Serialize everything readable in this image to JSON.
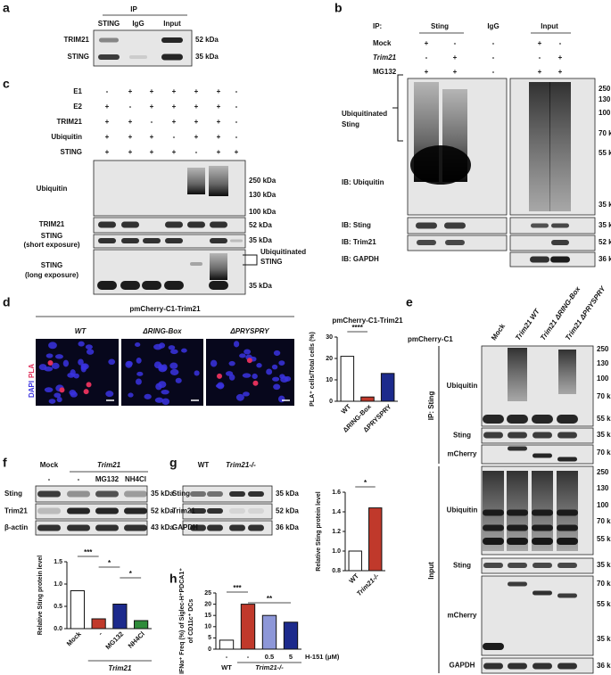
{
  "panels": {
    "a": {
      "letter": "a",
      "ip": "IP",
      "lanes": [
        "STING",
        "IgG",
        "Input"
      ],
      "rows": [
        "TRIM21",
        "STING"
      ],
      "markers": [
        "52 kDa",
        "35 kDa"
      ]
    },
    "b": {
      "letter": "b",
      "ip": "IP:",
      "groups": [
        "Sting",
        "IgG",
        "Input"
      ],
      "conditions": [
        {
          "name": "Mock",
          "signs": [
            "+",
            "-",
            "-",
            "+",
            "-"
          ]
        },
        {
          "name": "Trim21",
          "signs": [
            "-",
            "+",
            "-",
            "-",
            "+"
          ]
        },
        {
          "name": "MG132",
          "signs": [
            "+",
            "+",
            "-",
            "+",
            "+"
          ]
        }
      ],
      "bracket_label": [
        "Ubiquitinated",
        "Sting"
      ],
      "rows": [
        "IB: Ubiquitin",
        "IB: Sting",
        "IB: Trim21",
        "IB: GAPDH"
      ],
      "markers": [
        "250 kDa",
        "130 kDa",
        "100 kDa",
        "70 kDa",
        "55 kDa",
        "35 kDa",
        "35 kDa",
        "52 kDa",
        "36 kDa"
      ]
    },
    "c": {
      "letter": "c",
      "conditions": [
        {
          "name": "E1",
          "signs": [
            "-",
            "+",
            "+",
            "+",
            "+",
            "+",
            "-"
          ]
        },
        {
          "name": "E2",
          "signs": [
            "+",
            "-",
            "+",
            "+",
            "+",
            "+",
            "-"
          ]
        },
        {
          "name": "TRIM21",
          "signs": [
            "+",
            "+",
            "-",
            "+",
            "+",
            "+",
            "-"
          ]
        },
        {
          "name": "Ubiquitin",
          "signs": [
            "+",
            "+",
            "+",
            "-",
            "+",
            "+",
            "-"
          ]
        },
        {
          "name": "STING",
          "signs": [
            "+",
            "+",
            "+",
            "+",
            "-",
            "+",
            "+"
          ]
        }
      ],
      "rows": [
        "Ubiquitin",
        "TRIM21",
        "STING",
        "(short exposure)",
        "STING",
        "(long exposure)"
      ],
      "bracket_label": [
        "Ubiquitinated",
        "STING"
      ],
      "markers": [
        "250 kDa",
        "130 kDa",
        "100 kDa",
        "52 kDa",
        "35 kDa",
        "35 kDa"
      ]
    },
    "d": {
      "letter": "d",
      "title": "pmCherry-C1-Trim21",
      "columns": [
        "WT",
        "ΔRING-Box",
        "ΔPRYSPRY"
      ],
      "stain": [
        "DAPI",
        "PLA"
      ]
    },
    "e": {
      "letter": "e",
      "vector": "pmCherry-C1",
      "columns": [
        "Mock",
        "Trim21 WT",
        "Trim21 ΔRING-Box",
        "Trim21 ΔPRYSPRY"
      ],
      "sections": [
        "IP: Sting",
        "Input"
      ],
      "rows": [
        "Ubiquitin",
        "Sting",
        "mCherry",
        "Ubiquitin",
        "Sting",
        "mCherry",
        "GAPDH"
      ],
      "markers": [
        "250 kDa",
        "130 kDa",
        "100 kDa",
        "70 kDa",
        "55 kDa",
        "35 kDa",
        "70 kDa",
        "250 kDa",
        "130 kDa",
        "100 kDa",
        "70 kDa",
        "55 kDa",
        "35 kDa",
        "70 kDa",
        "55 kDa",
        "35 kDa",
        "36 kDa"
      ]
    },
    "f": {
      "letter": "f",
      "columns": [
        "Mock",
        "Trim21"
      ],
      "treatments": [
        "-",
        "-",
        "MG132",
        "NH4Cl"
      ],
      "rows": [
        "Sting",
        "Trim21",
        "β-actin"
      ],
      "markers": [
        "35 kDa",
        "52 kDa",
        "43 kDa"
      ]
    },
    "g": {
      "letter": "g",
      "columns": [
        "WT",
        "Trim21-/-"
      ],
      "rows": [
        "Sting",
        "Trim21",
        "GAPDH"
      ],
      "markers": [
        "35 kDa",
        "52 kDa",
        "36 kDa"
      ]
    },
    "h": {
      "letter": "h"
    }
  },
  "chart_data": [
    {
      "type": "bar",
      "title": "pmCherry-C1-Trim21",
      "y_label": "PLA⁺ cells/Total cells (%)",
      "categories": [
        "WT",
        "ΔRING-Box",
        "ΔPRYSPRY"
      ],
      "values": [
        21,
        2,
        13
      ],
      "colors": [
        "#ffffff",
        "#c0392b",
        "#1c2a8c"
      ],
      "ylim": [
        0,
        30
      ],
      "yticks": [
        0,
        10,
        20,
        30
      ],
      "annotations": [
        "****"
      ]
    },
    {
      "type": "bar",
      "y_label": "Relative Sting protein level",
      "categories": [
        "Mock",
        "-",
        "MG132",
        "NH4Cl"
      ],
      "group_label": "Trim21",
      "values": [
        0.85,
        0.22,
        0.55,
        0.18
      ],
      "colors": [
        "#ffffff",
        "#c0392b",
        "#1c2a8c",
        "#2e8b3a"
      ],
      "ylim": [
        0,
        1.5
      ],
      "yticks": [
        {
          "value": 0,
          "label": "0.0"
        },
        0.5,
        {
          "value": 1,
          "label": "1.0"
        },
        1.5
      ],
      "annotations": [
        "***",
        "*",
        "*"
      ]
    },
    {
      "type": "bar",
      "y_label": "Relative Sting protein level",
      "categories": [
        "WT",
        "Trim21-/-"
      ],
      "values": [
        1.0,
        1.44
      ],
      "colors": [
        "#ffffff",
        "#c0392b"
      ],
      "ylim": [
        0.8,
        1.6
      ],
      "yticks": [
        0.8,
        {
          "value": 1,
          "label": "1.0"
        },
        1.2,
        1.4,
        1.6
      ],
      "annotations": [
        "*"
      ]
    },
    {
      "type": "bar",
      "y_label": [
        "IFNα⁺ Freq (%) of Siglec-H⁺PDCA1⁺",
        "of CD11c⁺ DCs"
      ],
      "categories": [
        "-",
        "-",
        "0.5",
        "5"
      ],
      "unit_label": "H-151 (μM)",
      "group_labels": [
        "WT",
        "Trim21-/-"
      ],
      "values": [
        4,
        20,
        15,
        12
      ],
      "colors": [
        "#ffffff",
        "#c0392b",
        "#8d97d8",
        "#1c2a8c"
      ],
      "ylim": [
        0,
        25
      ],
      "yticks": [
        0,
        5,
        10,
        15,
        20,
        25
      ],
      "annotations": [
        "***",
        "**"
      ]
    }
  ]
}
